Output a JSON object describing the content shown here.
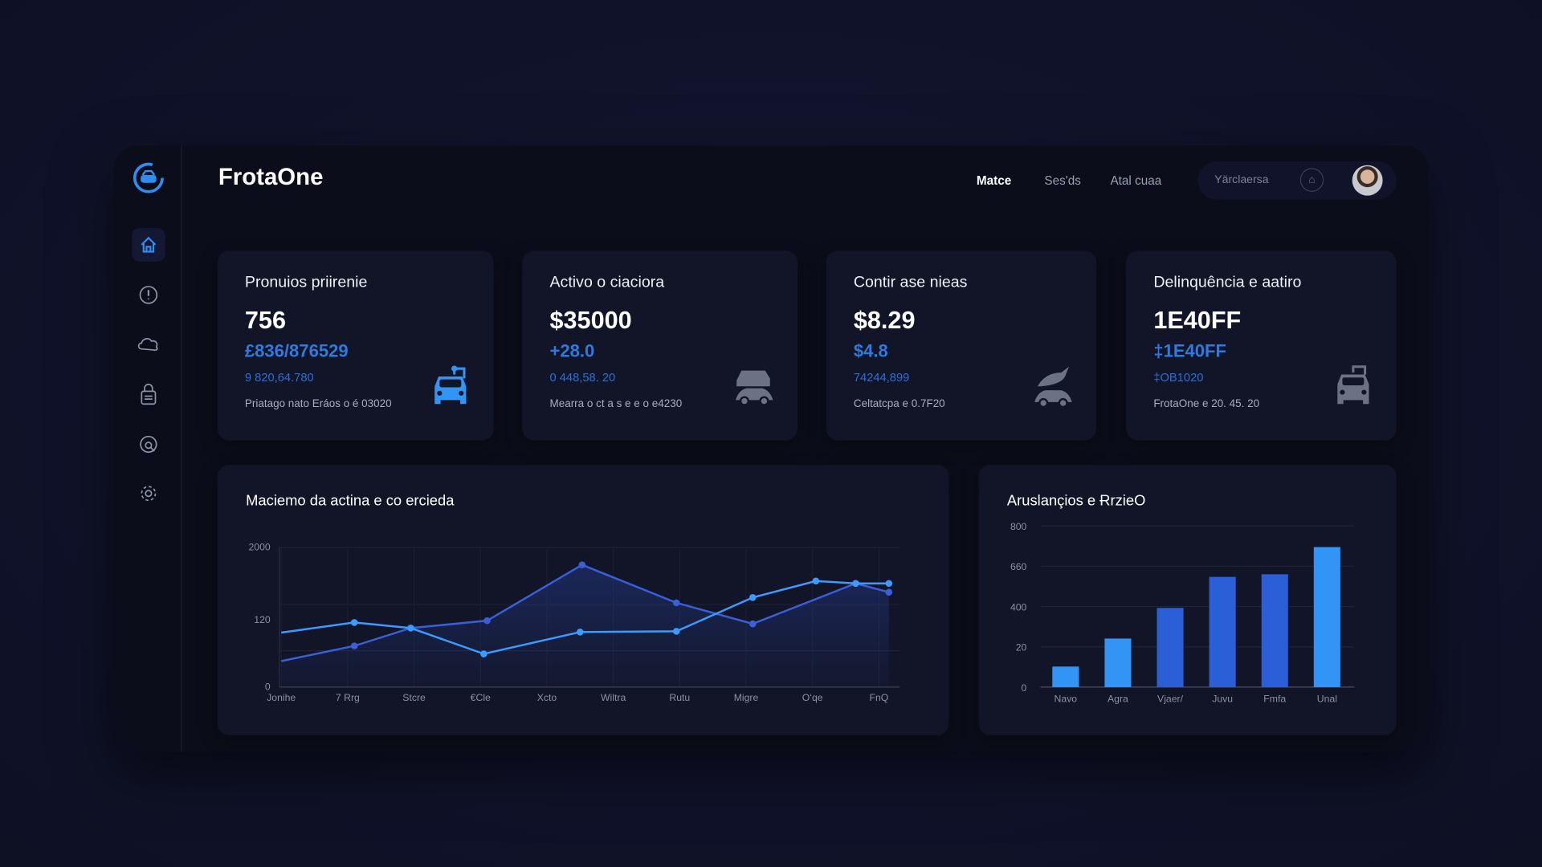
{
  "app": {
    "title": "FrotaOne"
  },
  "header": {
    "nav": [
      {
        "label": "Matce",
        "active": true
      },
      {
        "label": "Ses'ds"
      },
      {
        "label": "Atal cuaa"
      }
    ],
    "search_placeholder": "Yärclaersa",
    "notification_icon": "bell-icon",
    "avatar": "user-avatar"
  },
  "sidebar": {
    "items": [
      {
        "icon": "home-icon",
        "active": true
      },
      {
        "icon": "alert-icon"
      },
      {
        "icon": "cloud-icon"
      },
      {
        "icon": "lock-icon"
      },
      {
        "icon": "refresh-search-icon"
      },
      {
        "icon": "gear-icon"
      }
    ]
  },
  "accent": "#2f7ae0",
  "cards": [
    {
      "title": "Pronuios priirenie",
      "value": "756",
      "sub": "£836/876529",
      "detail": "9 820,64.780",
      "caption": "Priatago nato  Eráos o é 03020",
      "icon": "car-front-icon"
    },
    {
      "title": "Activo o ciaciora",
      "value": "$35000",
      "sub": "+28.0",
      "detail": "0 448,58. 20",
      "caption": "Mearra o ct a s e e o e4230",
      "icon": "two-cars-icon"
    },
    {
      "title": "Contir ase nieas",
      "value": "$8.29",
      "sub": "$4.8",
      "detail": "74244,899",
      "caption": "Celtatcpa e 0.7F20",
      "icon": "car-wash-icon"
    },
    {
      "title": "Delinquência e aatiro",
      "value": "1E40FF",
      "sub": "‡1E40FF",
      "detail": "‡OB1020",
      "caption": "FrotaOne e 20. 45. 20",
      "icon": "taxi-icon"
    }
  ],
  "chart_data": [
    {
      "type": "line",
      "title": "Maciemo da actina e co ercieda",
      "categories": [
        "Jonihe",
        "7 Rrg",
        "Stcre",
        "€Cle",
        "Xcto",
        "Wiltra",
        "Rutu",
        "Migre",
        "Oʻqe",
        "FnQ"
      ],
      "y_tick_labels": [
        "2000",
        "120",
        "0"
      ],
      "ylim": [
        0,
        2000
      ],
      "grid": true,
      "series": [
        {
          "color": "#3d9bff",
          "x": [
            0,
            1.1,
            1.95,
            3.05,
            4.5,
            5.95,
            7.1,
            8.05,
            8.65,
            9.15
          ],
          "values": [
            781,
            926,
            846,
            476,
            789,
            800,
            1284,
            1520,
            1486,
            1486
          ]
        },
        {
          "color": "#3a5fd9",
          "area": true,
          "x": [
            0,
            1.1,
            1.95,
            3.1,
            4.53,
            5.95,
            7.1,
            8.65,
            9.15
          ],
          "values": [
            373,
            590,
            846,
            952,
            1752,
            1208,
            907,
            1486,
            1360
          ]
        }
      ]
    },
    {
      "type": "bar",
      "title": "Aruslançios e ɌrzieO",
      "categories": [
        "Navo",
        "Agra",
        "Vjaer/",
        "Juvu",
        "Fmfa",
        "Unal"
      ],
      "y_tick_labels": [
        "0",
        "20",
        "400",
        "660",
        "800"
      ],
      "ylim": [
        0,
        800
      ],
      "grid": true,
      "values": [
        102,
        241,
        393,
        547,
        560,
        695
      ],
      "colors": [
        "#3295f5",
        "#3295f5",
        "#2b5fd8",
        "#2b5fd8",
        "#2b5fd8",
        "#3295f5"
      ]
    }
  ]
}
